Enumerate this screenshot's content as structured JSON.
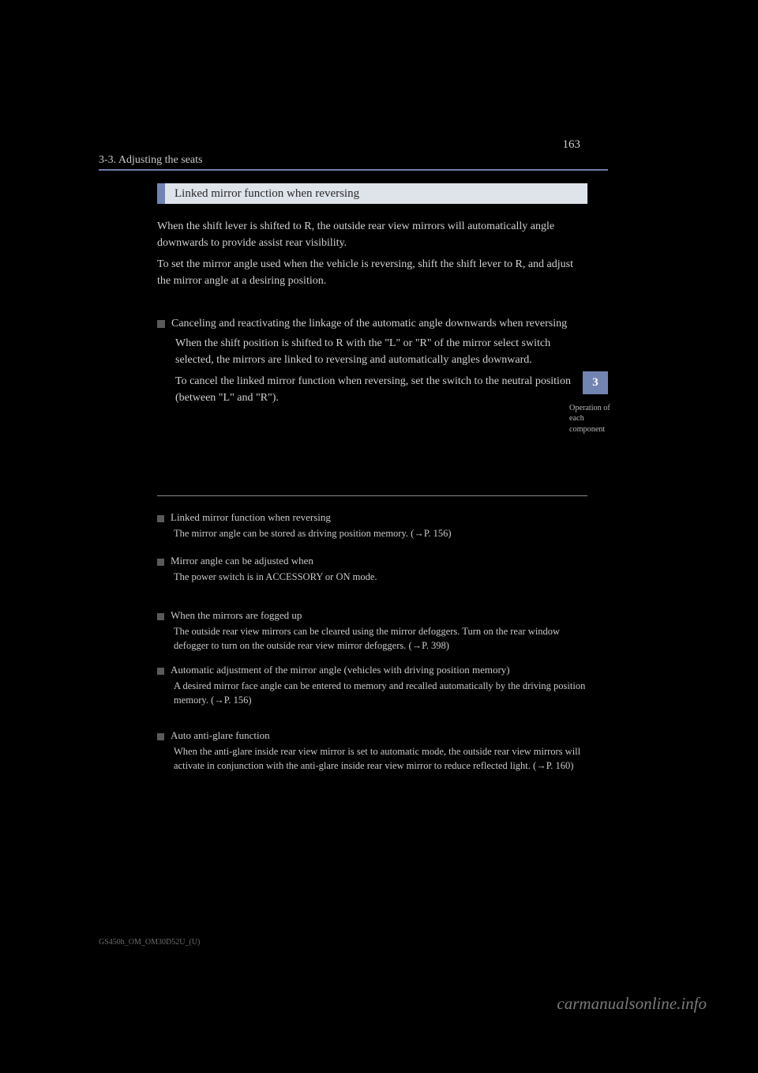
{
  "page_number": "163",
  "header": "3-3. Adjusting the seats",
  "section_title": "Linked mirror function when reversing",
  "intro": {
    "p1": "When the shift lever is shifted to R, the outside rear view mirrors will automatically angle downwards to provide assist rear visibility.",
    "p2": "To set the mirror angle used when the vehicle is reversing, shift the shift lever to R, and adjust the mirror angle at a desiring position."
  },
  "sub1": {
    "title": "Canceling and reactivating the linkage of the automatic angle downwards when reversing",
    "p1": "When the shift position is shifted to R with the \"L\" or \"R\" of the mirror select switch selected, the mirrors are linked to reversing and automatically angles downward.",
    "p2": "To cancel the linked mirror function when reversing, set the switch to the neutral position (between \"L\" and \"R\")."
  },
  "notes": {
    "n1": {
      "title": "Linked mirror function when reversing",
      "body": "The mirror angle can be stored as driving position memory. (→P. 156)"
    },
    "n2": {
      "title": "Mirror angle can be adjusted when",
      "body": "The power switch is in ACCESSORY or ON mode."
    },
    "n3": {
      "title": "When the mirrors are fogged up",
      "body": "The outside rear view mirrors can be cleared using the mirror defoggers. Turn on the rear window defogger to turn on the outside rear view mirror defoggers. (→P. 398)"
    },
    "n4": {
      "title": "Automatic adjustment of the mirror angle (vehicles with driving position memory)",
      "body": "A desired mirror face angle can be entered to memory and recalled automatically by the driving position memory. (→P. 156)"
    },
    "n5": {
      "title": "Auto anti-glare function",
      "body": "When the anti-glare inside rear view mirror is set to automatic mode, the outside rear view mirrors will activate in conjunction with the anti-glare inside rear view mirror to reduce reflected light. (→P. 160)"
    }
  },
  "side_tab": "3",
  "side_label": "Operation of each component",
  "footer_code": "GS450h_OM_OM30D52U_(U)",
  "watermark": "carmanualsonline.info"
}
